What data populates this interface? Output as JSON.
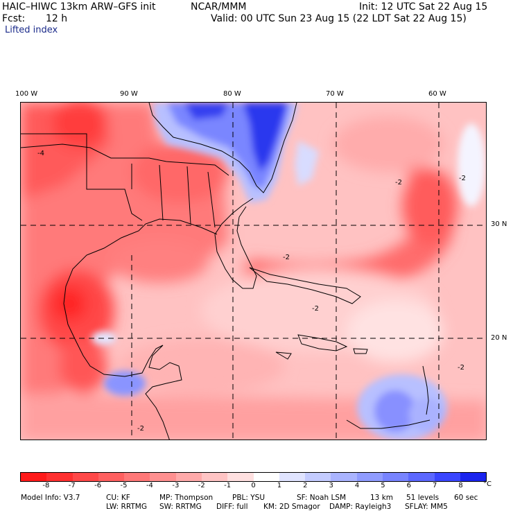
{
  "header": {
    "model": "HAIC–HIWC 13km ARW–GFS init",
    "org": "NCAR/MMM",
    "init": "Init: 12 UTC Sat 22 Aug 15",
    "fcst_label": "Fcst:",
    "fcst_value": "12 h",
    "valid": "Valid: 00 UTC Sun 23 Aug 15 (22 LDT Sat 22 Aug 15)",
    "field": "Lifted index"
  },
  "map": {
    "lon_labels": [
      "100 W",
      "90 W",
      "80 W",
      "70 W",
      "60 W"
    ],
    "lat_labels": [
      "30 N",
      "20 N"
    ],
    "contour_labels": [
      "-4",
      "-2",
      "-2",
      "-2",
      "-2",
      "-2",
      "-2"
    ]
  },
  "colorbar": {
    "ticks": [
      "-8",
      "-7",
      "-6",
      "-5",
      "-4",
      "-3",
      "-2",
      "-1",
      "0",
      "1",
      "2",
      "3",
      "4",
      "5",
      "6",
      "7",
      "8"
    ],
    "unit": "°C",
    "colors": [
      "#ff1a1a",
      "#ff3030",
      "#ff4848",
      "#ff6060",
      "#ff7878",
      "#ff9090",
      "#ffaaaa",
      "#ffc4c4",
      "#ffe0e0",
      "#ffffff",
      "#e0e4ff",
      "#c4ccff",
      "#aab4ff",
      "#909cff",
      "#7884ff",
      "#5c68ff",
      "#3a46ff",
      "#1a24ee"
    ]
  },
  "footer": {
    "line1": [
      "Model Info: V3.7",
      "CU: KF",
      "MP: Thompson",
      "PBL: YSU",
      "SF: Noah LSM",
      "13 km",
      "51 levels",
      "60 sec"
    ],
    "line2": [
      "LW: RRTMG",
      "SW: RRTMG",
      "DIFF: full",
      "KM: 2D Smagor",
      "DAMP: Rayleigh3",
      "SFLAY: MM5"
    ]
  }
}
